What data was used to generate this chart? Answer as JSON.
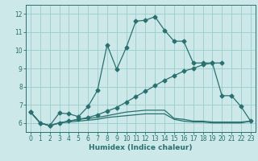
{
  "xlabel": "Humidex (Indice chaleur)",
  "background_color": "#cce8e8",
  "grid_color": "#99cccc",
  "line_color": "#2a7070",
  "xlim": [
    -0.5,
    23.5
  ],
  "ylim": [
    5.5,
    12.5
  ],
  "yticks": [
    6,
    7,
    8,
    9,
    10,
    11,
    12
  ],
  "xticks": [
    0,
    1,
    2,
    3,
    4,
    5,
    6,
    7,
    8,
    9,
    10,
    11,
    12,
    13,
    14,
    15,
    16,
    17,
    18,
    19,
    20,
    21,
    22,
    23
  ],
  "line1_x": [
    0,
    1,
    2,
    3,
    4,
    5,
    6,
    7,
    8,
    9,
    10,
    11,
    12,
    13,
    14,
    15,
    16,
    17,
    18,
    19,
    20,
    21,
    22,
    23
  ],
  "line1_y": [
    6.6,
    6.0,
    5.85,
    6.55,
    6.5,
    6.35,
    6.9,
    7.8,
    10.3,
    8.95,
    10.15,
    11.6,
    11.65,
    11.85,
    11.1,
    10.5,
    10.5,
    9.3,
    9.3,
    9.3,
    9.3,
    null,
    null,
    null
  ],
  "line2_x": [
    0,
    1,
    2,
    3,
    4,
    5,
    6,
    7,
    8,
    9,
    10,
    11,
    12,
    13,
    14,
    15,
    16,
    17,
    18,
    19,
    20,
    21,
    22,
    23
  ],
  "line2_y": [
    6.6,
    6.0,
    5.85,
    6.0,
    6.1,
    6.2,
    6.3,
    6.45,
    6.65,
    6.85,
    7.15,
    7.45,
    7.75,
    8.05,
    8.35,
    8.6,
    8.85,
    9.0,
    9.2,
    9.3,
    7.5,
    7.5,
    6.9,
    6.1
  ],
  "line3_x": [
    0,
    1,
    2,
    3,
    4,
    5,
    6,
    7,
    8,
    9,
    10,
    11,
    12,
    13,
    14,
    15,
    16,
    17,
    18,
    19,
    20,
    21,
    22,
    23
  ],
  "line3_y": [
    6.6,
    6.0,
    5.85,
    6.0,
    6.1,
    6.2,
    6.25,
    6.3,
    6.4,
    6.5,
    6.6,
    6.65,
    6.7,
    6.7,
    6.7,
    6.25,
    6.2,
    6.1,
    6.1,
    6.05,
    6.05,
    6.05,
    6.05,
    6.1
  ],
  "line4_x": [
    0,
    1,
    2,
    3,
    4,
    5,
    6,
    7,
    8,
    9,
    10,
    11,
    12,
    13,
    14,
    15,
    16,
    17,
    18,
    19,
    20,
    21,
    22,
    23
  ],
  "line4_y": [
    6.6,
    6.0,
    5.85,
    6.0,
    6.05,
    6.1,
    6.15,
    6.2,
    6.3,
    6.35,
    6.4,
    6.45,
    6.5,
    6.5,
    6.5,
    6.2,
    6.1,
    6.05,
    6.05,
    6.0,
    6.0,
    6.0,
    6.0,
    6.1
  ]
}
